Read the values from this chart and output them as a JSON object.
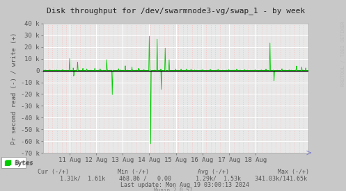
{
  "title": "Disk throughput for /dev/swarmnode3-vg/swap_1 - by week",
  "ylabel": "Pr second read (-) / write (+)",
  "background_color": "#c8c8c8",
  "plot_bg_color": "#e8e8e8",
  "line_color": "#00cc00",
  "zero_line_color": "#000000",
  "ylim": [
    -70000,
    40000
  ],
  "yticks": [
    -70000,
    -60000,
    -50000,
    -40000,
    -30000,
    -20000,
    -10000,
    0,
    10000,
    20000,
    30000,
    40000
  ],
  "ytick_labels": [
    "-70 k",
    "-60 k",
    "-50 k",
    "-40 k",
    "-30 k",
    "-20 k",
    "-10 k",
    "0",
    "10 k",
    "20 k",
    "30 k",
    "40 k"
  ],
  "xstart": 1723161600,
  "xend": 1724025600,
  "xtick_positions": [
    1723248000,
    1723334400,
    1723420800,
    1723507200,
    1723593600,
    1723680000,
    1723766400,
    1723852800
  ],
  "xtick_labels": [
    "11 Aug",
    "12 Aug",
    "13 Aug",
    "14 Aug",
    "15 Aug",
    "16 Aug",
    "17 Aug",
    "18 Aug"
  ],
  "legend_label": "Bytes",
  "legend_color": "#00cc00",
  "rrdtool_label": "RRDTOOL / TOBI OETIKER",
  "title_color": "#222222",
  "axis_color": "#555555",
  "munin_version": "Munin 2.0.57",
  "n_minor_vert": 57
}
